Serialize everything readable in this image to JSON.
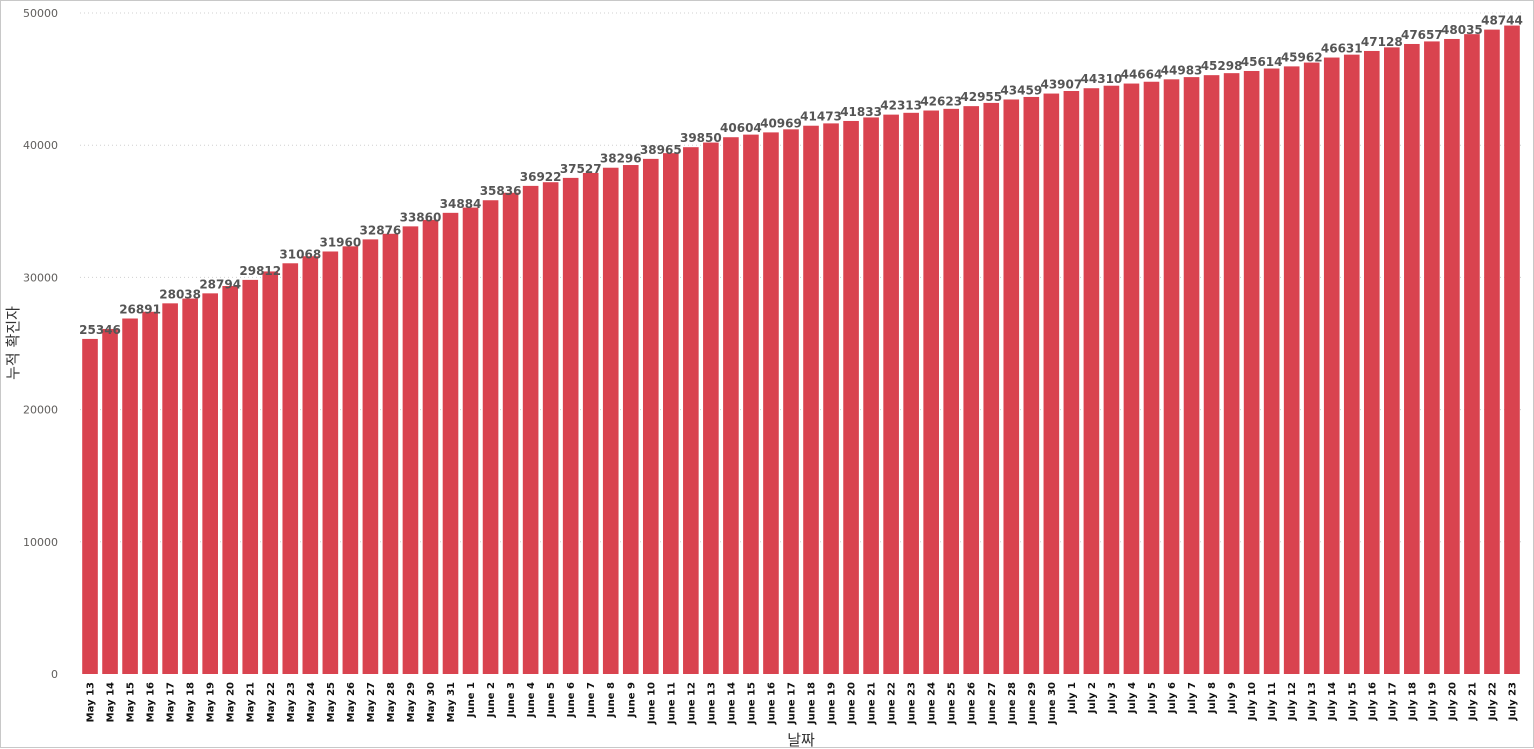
{
  "chart_data": {
    "type": "bar",
    "title": "",
    "xlabel": "날짜",
    "ylabel": "누적 확진자",
    "ylim": [
      0,
      50000
    ],
    "yticks": [
      0,
      10000,
      20000,
      30000,
      40000,
      50000
    ],
    "grid": true,
    "bar_color": "#d9434f",
    "categories": [
      "May 13",
      "May 14",
      "May 15",
      "May 16",
      "May 17",
      "May 18",
      "May 19",
      "May 20",
      "May 21",
      "May 22",
      "May 23",
      "May 24",
      "May 25",
      "May 26",
      "May 27",
      "May 28",
      "May 29",
      "May 30",
      "May 31",
      "June 1",
      "June 2",
      "June 3",
      "June 4",
      "June 5",
      "June 6",
      "June 7",
      "June 8",
      "June 9",
      "June 10",
      "June 11",
      "June 12",
      "June 13",
      "June 14",
      "June 15",
      "June 16",
      "June 17",
      "June 18",
      "June 19",
      "June 20",
      "June 21",
      "June 22",
      "June 23",
      "June 24",
      "June 25",
      "June 26",
      "June 27",
      "June 28",
      "June 29",
      "June 30",
      "July 1",
      "July 2",
      "July 3",
      "July 4",
      "July 5",
      "July 6",
      "July 7",
      "July 8",
      "July 9",
      "July 10",
      "July 11",
      "July 12",
      "July 13",
      "July 14",
      "July 15",
      "July 16",
      "July 17",
      "July 18",
      "July 19",
      "July 20",
      "July 21",
      "July 22",
      "July 23"
    ],
    "values": [
      25346,
      26100,
      26891,
      27400,
      28038,
      28400,
      28794,
      29350,
      29812,
      30450,
      31068,
      31600,
      31960,
      32350,
      32876,
      33300,
      33860,
      34350,
      34884,
      35280,
      35836,
      36400,
      36922,
      37200,
      37527,
      37900,
      38296,
      38500,
      38965,
      39400,
      39850,
      40200,
      40604,
      40800,
      40969,
      41200,
      41473,
      41650,
      41833,
      42100,
      42313,
      42450,
      42623,
      42750,
      42955,
      43200,
      43459,
      43650,
      43907,
      44100,
      44310,
      44500,
      44664,
      44800,
      44983,
      45150,
      45298,
      45450,
      45614,
      45800,
      45962,
      46250,
      46631,
      46850,
      47128,
      47400,
      47657,
      47850,
      48035,
      48400,
      48744,
      49050
    ],
    "data_labels": [
      {
        "index": 0,
        "text": "25346"
      },
      {
        "index": 2,
        "text": "26891"
      },
      {
        "index": 4,
        "text": "28038"
      },
      {
        "index": 6,
        "text": "28794"
      },
      {
        "index": 8,
        "text": "29812"
      },
      {
        "index": 10,
        "text": "31068"
      },
      {
        "index": 12,
        "text": "31960"
      },
      {
        "index": 14,
        "text": "32876"
      },
      {
        "index": 16,
        "text": "33860"
      },
      {
        "index": 18,
        "text": "34884"
      },
      {
        "index": 20,
        "text": "35836"
      },
      {
        "index": 22,
        "text": "36922"
      },
      {
        "index": 24,
        "text": "37527"
      },
      {
        "index": 26,
        "text": "38296"
      },
      {
        "index": 28,
        "text": "38965"
      },
      {
        "index": 30,
        "text": "39850"
      },
      {
        "index": 32,
        "text": "40604"
      },
      {
        "index": 34,
        "text": "40969"
      },
      {
        "index": 36,
        "text": "41473"
      },
      {
        "index": 38,
        "text": "41833"
      },
      {
        "index": 40,
        "text": "42313"
      },
      {
        "index": 42,
        "text": "42623"
      },
      {
        "index": 44,
        "text": "42955"
      },
      {
        "index": 46,
        "text": "43459"
      },
      {
        "index": 48,
        "text": "43907"
      },
      {
        "index": 50,
        "text": "44310"
      },
      {
        "index": 52,
        "text": "44664"
      },
      {
        "index": 54,
        "text": "44983"
      },
      {
        "index": 56,
        "text": "45298"
      },
      {
        "index": 58,
        "text": "45614"
      },
      {
        "index": 60,
        "text": "45962"
      },
      {
        "index": 62,
        "text": "46631"
      },
      {
        "index": 64,
        "text": "47128"
      },
      {
        "index": 66,
        "text": "47657"
      },
      {
        "index": 68,
        "text": "48035"
      },
      {
        "index": 70,
        "text": "48744"
      }
    ]
  }
}
